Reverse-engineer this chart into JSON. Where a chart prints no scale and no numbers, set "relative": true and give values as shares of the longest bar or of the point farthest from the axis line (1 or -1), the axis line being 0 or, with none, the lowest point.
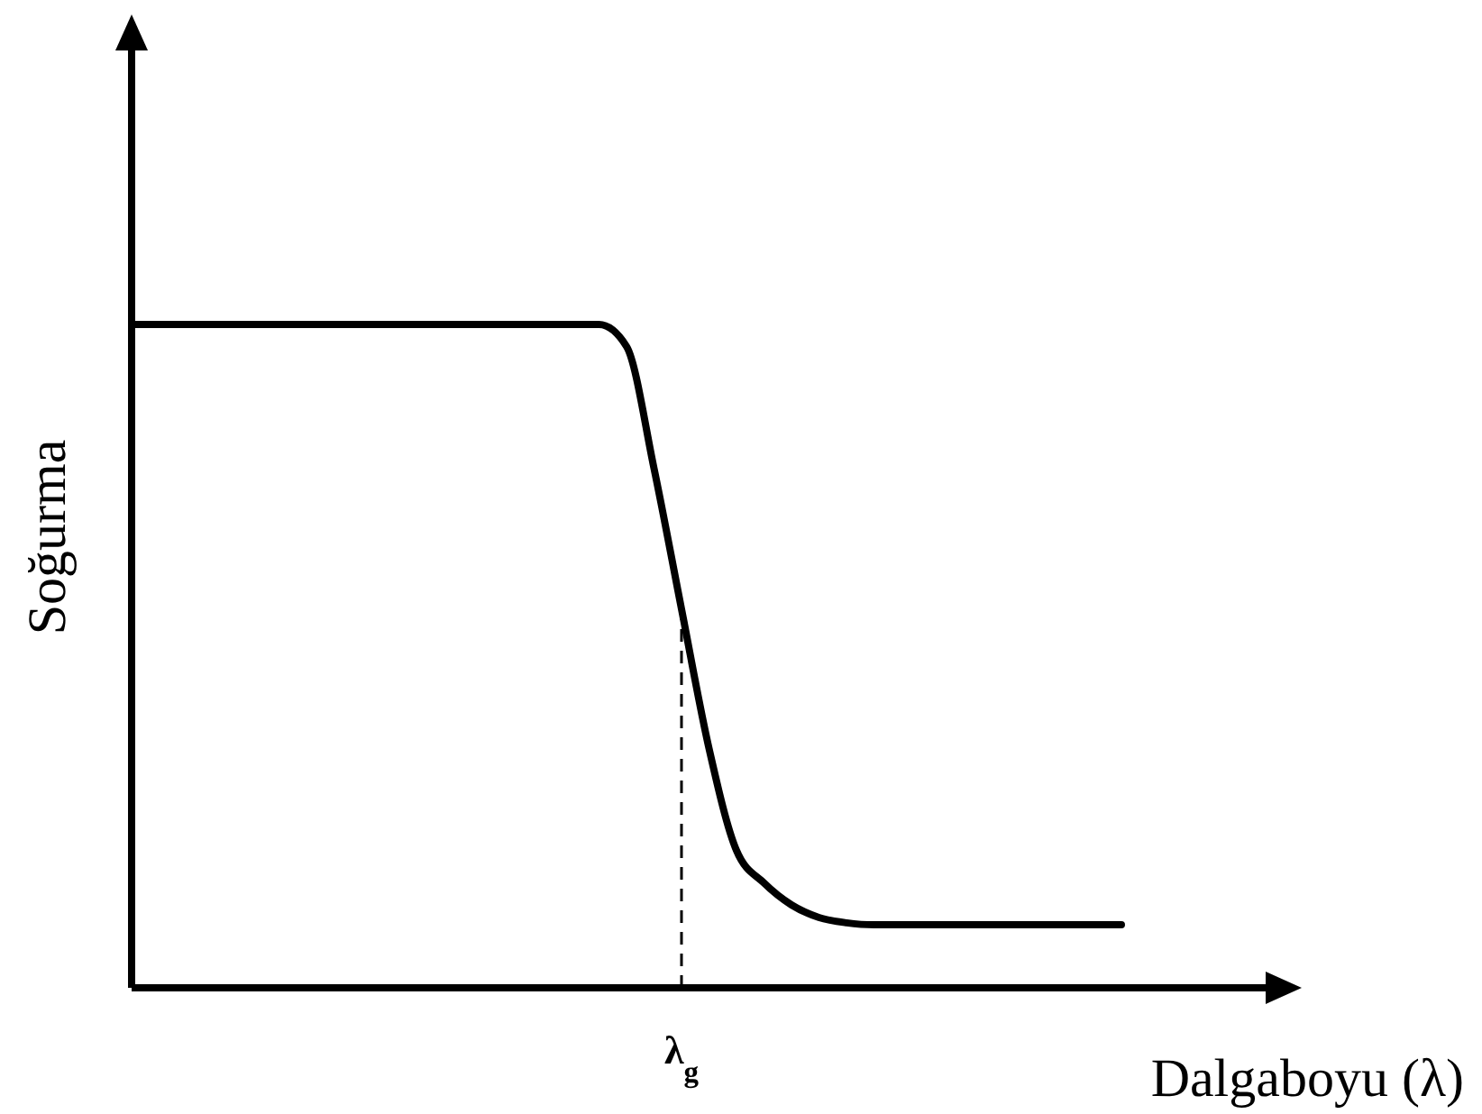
{
  "chart_data": {
    "type": "line",
    "relative": true,
    "ylabel": "Soğurma",
    "xlabel": "Dalgaboyu (λ)",
    "categories": [
      null,
      null,
      null,
      null,
      null,
      null,
      null,
      null,
      null,
      null,
      null,
      null,
      null,
      null,
      null,
      null,
      null,
      null,
      null,
      null,
      null,
      null,
      null,
      null,
      null,
      null,
      null,
      null,
      null,
      null,
      null,
      null,
      null,
      null,
      null,
      null,
      null
    ],
    "series": [
      {
        "color": "#000000",
        "values": [
          1,
          1,
          1,
          1,
          1,
          1,
          1,
          1,
          1,
          1,
          1,
          1,
          1,
          1,
          1,
          1,
          1,
          1,
          0.967,
          0.783,
          0.571,
          0.361,
          0.207,
          0.158,
          0.125,
          0.106,
          0.098,
          0.095,
          0.095,
          0.095,
          0.095,
          0.095,
          0.095,
          0.095,
          0.095,
          0.095,
          0.095
        ]
      }
    ],
    "annotations": [
      {
        "text": "λ$_{g}$",
        "y": 0.571
      }
    ],
    "grid": false,
    "marker": "none",
    "line_style": "solid"
  }
}
